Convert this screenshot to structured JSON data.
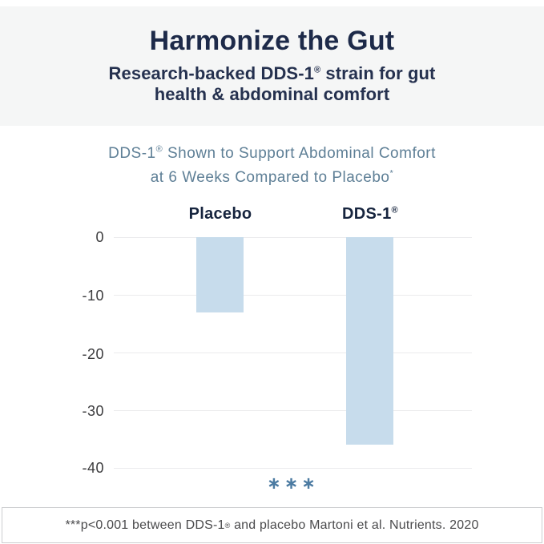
{
  "header": {
    "title": "Harmonize the Gut",
    "subtitle": {
      "line1_pre": "Research-backed DDS-1",
      "reg": "®",
      "line1_post": " strain for gut",
      "line2": "health & abdominal comfort"
    }
  },
  "chart": {
    "title": {
      "line1_pre": "DDS-1",
      "line1_reg": "®",
      "line1_post": " Shown to Support Abdominal Comfort",
      "line2": "at 6 Weeks Compared to Placebo",
      "line2_sup": "*"
    },
    "columns": [
      {
        "label": "Placebo",
        "sup": ""
      },
      {
        "label": "DDS-1",
        "sup": "®"
      }
    ],
    "marker_display": "∗∗∗"
  },
  "chart_data": {
    "type": "bar",
    "title": "DDS-1® Shown to Support Abdominal Comfort at 6 Weeks Compared to Placebo*",
    "categories": [
      "Placebo",
      "DDS-1®"
    ],
    "values": [
      -13,
      -36
    ],
    "ylim": [
      -40,
      0
    ],
    "yticks": [
      0,
      -10,
      -20,
      -30,
      -40
    ],
    "ytick_labels": [
      "0",
      "-10",
      "-20",
      "-30",
      "-40"
    ],
    "xlabel": "",
    "ylabel": "",
    "grid": true,
    "legend": false,
    "bar_color": "#c7dcec",
    "significance_marker": "***",
    "significance_note": "***p<0.001 between DDS-1® and placebo"
  },
  "footer": {
    "pre": "***p<0.001 between DDS-1",
    "reg": "®",
    "post": " and placebo Martoni et al. Nutrients. 2020"
  },
  "colors": {
    "accent_navy": "#1d2a49",
    "chart_title_blue": "#5e7f96",
    "bar_fill": "#c7dcec",
    "marker_blue": "#4c7ba2",
    "header_bg": "#f5f6f6",
    "gridline": "#ebebed"
  }
}
